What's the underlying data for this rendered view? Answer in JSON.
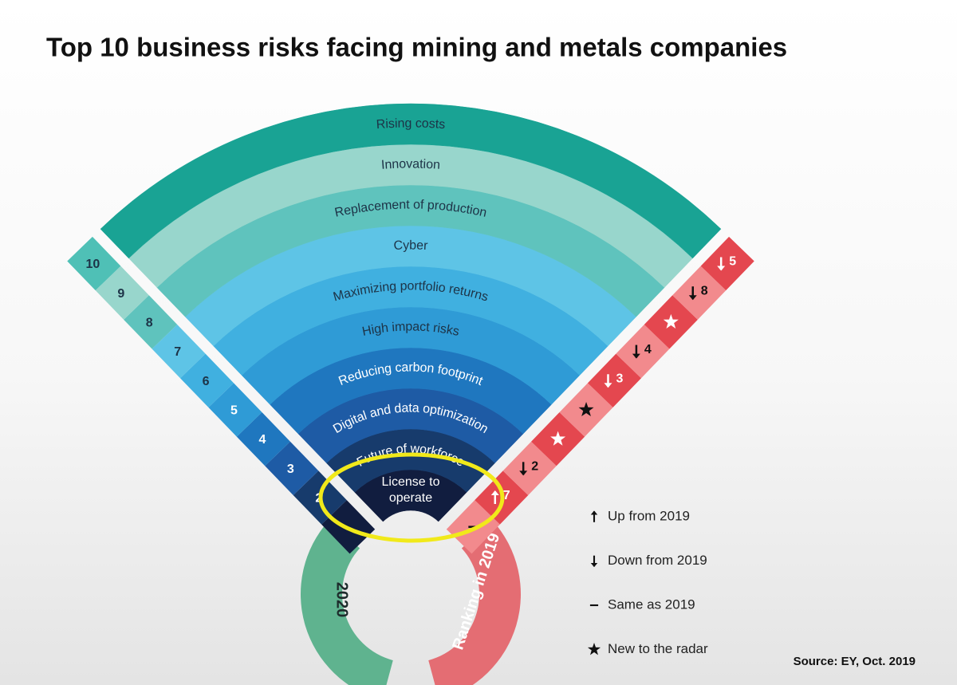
{
  "title": "Top 10 business risks facing mining and metals companies",
  "risks": [
    {
      "risk": "License to operate",
      "change": "same"
    },
    {
      "rank": "2",
      "risk": "Future of workforce",
      "change": "up",
      "previous": "7"
    },
    {
      "rank": "3",
      "risk": "Digital and data optimization",
      "change": "down",
      "previous": "2"
    },
    {
      "rank": "4",
      "risk": "Reducing carbon footprint",
      "change": "new"
    },
    {
      "rank": "5",
      "risk": "High impact risks",
      "change": "new"
    },
    {
      "rank": "6",
      "risk": "Maximizing portfolio returns",
      "change": "down",
      "previous": "3"
    },
    {
      "rank": "7",
      "risk": "Cyber",
      "change": "down",
      "previous": "4"
    },
    {
      "rank": "8",
      "risk": "Replacement of production",
      "change": "new"
    },
    {
      "rank": "9",
      "risk": "Innovation",
      "change": "down",
      "previous": "8"
    },
    {
      "rank": "10",
      "risk": "Rising costs",
      "change": "down",
      "previous": "5"
    }
  ],
  "rings": {
    "current": "2020",
    "previous": "Ranking in 2019"
  },
  "legend": [
    {
      "icon": "up",
      "label": "Up from 2019"
    },
    {
      "icon": "down",
      "label": "Down from 2019"
    },
    {
      "icon": "same",
      "label": "Same as 2019"
    },
    {
      "icon": "new",
      "label": "New to the radar"
    }
  ],
  "source": "Source: EY, Oct. 2019"
}
